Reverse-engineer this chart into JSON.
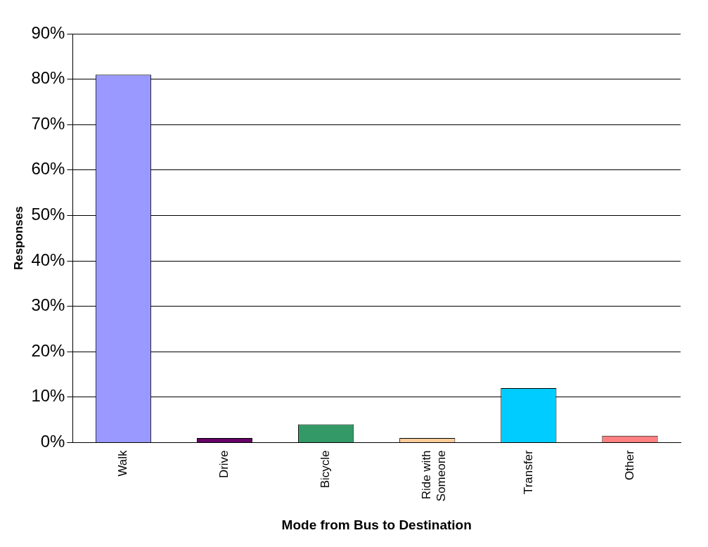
{
  "chart_data": {
    "type": "bar",
    "xlabel": "Mode from Bus to Destination",
    "ylabel": "Responses",
    "categories": [
      "Walk",
      "Drive",
      "Bicycle",
      "Ride with Someone",
      "Transfer",
      "Other"
    ],
    "values": [
      81,
      1,
      4,
      1,
      12,
      1.5
    ],
    "colors": [
      "#9999ff",
      "#660066",
      "#339966",
      "#ffcc99",
      "#00ccff",
      "#ff8080"
    ],
    "ylim": [
      0,
      90
    ],
    "yticks": [
      {
        "value": 0,
        "label": "0%"
      },
      {
        "value": 10,
        "label": "10%"
      },
      {
        "value": 20,
        "label": "20%"
      },
      {
        "value": 30,
        "label": "30%"
      },
      {
        "value": 40,
        "label": "40%"
      },
      {
        "value": 50,
        "label": "50%"
      },
      {
        "value": 60,
        "label": "60%"
      },
      {
        "value": 70,
        "label": "70%"
      },
      {
        "value": 80,
        "label": "80%"
      },
      {
        "value": 90,
        "label": "90%"
      }
    ],
    "grid": "y",
    "legend": false
  }
}
